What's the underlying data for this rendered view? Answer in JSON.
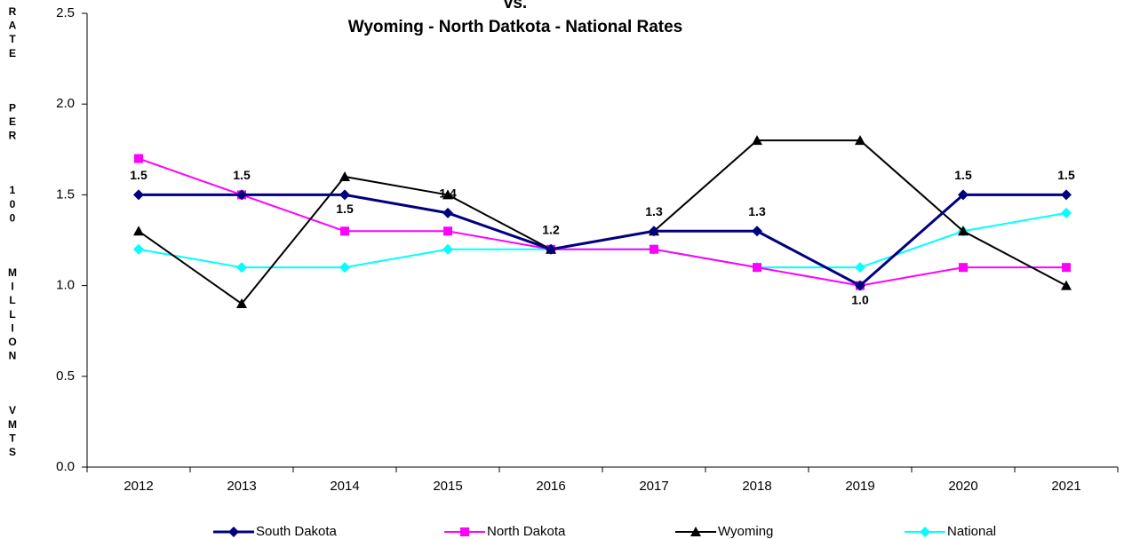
{
  "chart_data": {
    "type": "line",
    "title_lines": [
      "vs.",
      "Wyoming - North Datkota - National Rates"
    ],
    "y_label": "RATE PER 100 MILLION VMTS",
    "categories": [
      "2012",
      "2013",
      "2014",
      "2015",
      "2016",
      "2017",
      "2018",
      "2019",
      "2020",
      "2021"
    ],
    "series": [
      {
        "name": "South Dakota",
        "color": "#000080",
        "marker": "diamond",
        "values": [
          1.5,
          1.5,
          1.5,
          1.4,
          1.2,
          1.3,
          1.3,
          1.0,
          1.5,
          1.5
        ],
        "value_labels": [
          "1.5",
          "1.5",
          "1.5",
          "1.4",
          "1.2",
          "1.3",
          "1.3",
          "1.0",
          "1.5",
          "1.5"
        ]
      },
      {
        "name": "North Dakota",
        "color": "#ff00ff",
        "marker": "square",
        "values": [
          1.7,
          1.5,
          1.3,
          1.3,
          1.2,
          1.2,
          1.1,
          1.0,
          1.1,
          1.1
        ]
      },
      {
        "name": "Wyoming",
        "color": "#000000",
        "marker": "triangle",
        "values": [
          1.3,
          0.9,
          1.6,
          1.5,
          1.2,
          1.3,
          1.8,
          1.8,
          1.3,
          1.0
        ]
      },
      {
        "name": "National",
        "color": "#00ffff",
        "marker": "diamond",
        "values": [
          1.2,
          1.1,
          1.1,
          1.2,
          1.2,
          1.2,
          1.1,
          1.1,
          1.3,
          1.4
        ]
      }
    ],
    "ylim": [
      0,
      2.5
    ],
    "yticks": [
      {
        "value": 0,
        "label": "0.0"
      },
      0.5,
      {
        "value": 1,
        "label": "1.0"
      },
      1.5,
      {
        "value": 2,
        "label": "2.0"
      },
      2.5
    ],
    "grid": false,
    "legend": "bottom"
  }
}
